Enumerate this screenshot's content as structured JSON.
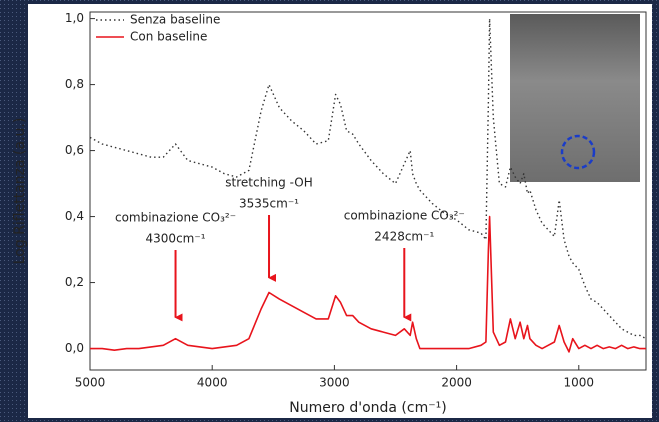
{
  "chart_data": {
    "type": "line",
    "xlabel": "Numero d'onda (cm⁻¹)",
    "ylabel": "Log Riflettanza (a.u.)",
    "xlim": [
      5000,
      450
    ],
    "ylim": [
      -0.065,
      1.02
    ],
    "xticks": [
      5000,
      4000,
      3000,
      2000,
      1000
    ],
    "yticks": [
      {
        "value": 0.0,
        "label": "0,0"
      },
      {
        "value": 0.2,
        "label": "0,2"
      },
      {
        "value": 0.4,
        "label": "0,4"
      },
      {
        "value": 0.6,
        "label": "0,6"
      },
      {
        "value": 0.8,
        "label": "0,8"
      },
      {
        "value": 1.0,
        "label": "1,0"
      }
    ],
    "legend": "upper left",
    "x": [
      5000,
      4900,
      4800,
      4700,
      4600,
      4500,
      4400,
      4300,
      4200,
      4100,
      4000,
      3900,
      3800,
      3700,
      3600,
      3535,
      3450,
      3350,
      3250,
      3150,
      3050,
      2990,
      2950,
      2900,
      2850,
      2800,
      2700,
      2600,
      2500,
      2428,
      2380,
      2360,
      2330,
      2300,
      2200,
      2100,
      2000,
      1900,
      1800,
      1760,
      1740,
      1730,
      1700,
      1650,
      1600,
      1560,
      1520,
      1480,
      1450,
      1420,
      1400,
      1350,
      1300,
      1250,
      1200,
      1160,
      1120,
      1080,
      1050,
      1000,
      950,
      900,
      850,
      800,
      750,
      700,
      650,
      600,
      550,
      500,
      450
    ],
    "series": [
      {
        "name": "Senza baseline",
        "color": "#333333",
        "style": "dotted",
        "values": [
          0.64,
          0.62,
          0.61,
          0.6,
          0.59,
          0.58,
          0.58,
          0.62,
          0.57,
          0.56,
          0.55,
          0.53,
          0.52,
          0.54,
          0.72,
          0.8,
          0.73,
          0.69,
          0.66,
          0.62,
          0.63,
          0.77,
          0.74,
          0.66,
          0.65,
          0.62,
          0.57,
          0.53,
          0.5,
          0.56,
          0.6,
          0.53,
          0.5,
          0.48,
          0.44,
          0.41,
          0.39,
          0.36,
          0.35,
          0.33,
          0.75,
          1.0,
          0.7,
          0.5,
          0.49,
          0.55,
          0.52,
          0.5,
          0.53,
          0.47,
          0.48,
          0.42,
          0.38,
          0.36,
          0.34,
          0.45,
          0.33,
          0.28,
          0.26,
          0.24,
          0.19,
          0.15,
          0.14,
          0.12,
          0.1,
          0.08,
          0.06,
          0.05,
          0.04,
          0.04,
          0.03
        ]
      },
      {
        "name": "Con baseline",
        "color": "#e8141c",
        "style": "solid",
        "values": [
          0.0,
          0.0,
          -0.005,
          0.0,
          0.0,
          0.005,
          0.01,
          0.03,
          0.01,
          0.005,
          0.0,
          0.005,
          0.01,
          0.03,
          0.12,
          0.17,
          0.15,
          0.13,
          0.11,
          0.09,
          0.09,
          0.16,
          0.14,
          0.1,
          0.1,
          0.08,
          0.06,
          0.05,
          0.04,
          0.06,
          0.04,
          0.08,
          0.03,
          0.0,
          0.0,
          0.0,
          0.0,
          0.0,
          0.01,
          0.02,
          0.3,
          0.4,
          0.05,
          0.01,
          0.02,
          0.09,
          0.03,
          0.08,
          0.03,
          0.07,
          0.03,
          0.01,
          0.0,
          0.01,
          0.02,
          0.07,
          0.02,
          -0.01,
          0.03,
          0.0,
          0.01,
          0.0,
          0.01,
          0.0,
          0.005,
          0.0,
          0.01,
          0.0,
          0.005,
          0.0,
          0.0
        ]
      }
    ],
    "annotations": [
      {
        "text": "combinazione CO₃²⁻",
        "label": "4300cm⁻¹",
        "x": 4300,
        "y": 0.07,
        "color": "#e8141c"
      },
      {
        "text": "stretching -OH",
        "label": "3535cm⁻¹",
        "x": 3535,
        "y": 0.19,
        "color": "#e8141c"
      },
      {
        "text": "combinazione CO₃²⁻",
        "label": "2428cm⁻¹",
        "x": 2428,
        "y": 0.07,
        "color": "#e8141c"
      }
    ]
  }
}
